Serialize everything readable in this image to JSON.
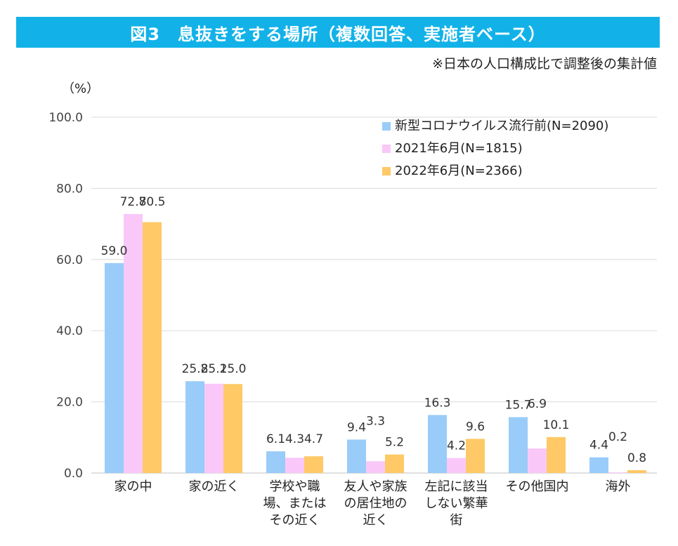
{
  "header": {
    "title": "図3　息抜きをする場所（複数回答、実施者ベース）",
    "note": "※日本の人口構成比で調整後の集計値"
  },
  "colors": {
    "banner": "#12b2e8",
    "series": [
      "#99ccf8",
      "#f9c8f9",
      "#fec966"
    ],
    "grid": "#d9d9d9"
  },
  "chart_data": {
    "type": "bar",
    "title": "図3　息抜きをする場所（複数回答、実施者ベース）",
    "ylabel": "（%）",
    "ylim": [
      0,
      100
    ],
    "yticks": [
      "0.0",
      "20.0",
      "40.0",
      "60.0",
      "80.0",
      "100.0"
    ],
    "categories": [
      [
        "家の中"
      ],
      [
        "家の近く"
      ],
      [
        "学校や職",
        "場、または",
        "その近く"
      ],
      [
        "友人や家族",
        "の居住地の",
        "近く"
      ],
      [
        "左記に該当",
        "しない繁華",
        "街"
      ],
      [
        "その他国内"
      ],
      [
        "海外"
      ]
    ],
    "series": [
      {
        "name": "新型コロナウイルス流行前(N=2090)",
        "values": [
          59.0,
          25.8,
          6.1,
          9.4,
          16.3,
          15.7,
          4.4
        ],
        "labels": [
          "59.0",
          "25.8",
          "6.1",
          "9.4",
          "16.3",
          "15.7",
          "4.4"
        ]
      },
      {
        "name": "2021年6月(N=1815)",
        "values": [
          72.8,
          25.1,
          4.3,
          3.3,
          4.2,
          6.9,
          0.2
        ],
        "labels": [
          "72.8",
          "25.1",
          "4.3",
          "3.3",
          "4.2",
          "6.9",
          "0.2"
        ]
      },
      {
        "name": "2022年6月(N=2366)",
        "values": [
          70.5,
          25.0,
          4.7,
          5.2,
          9.6,
          10.1,
          0.8
        ],
        "labels": [
          "70.5",
          "25.0",
          "4.7",
          "5.2",
          "9.6",
          "10.1",
          "0.8"
        ]
      }
    ],
    "legend_position": "top-right"
  }
}
